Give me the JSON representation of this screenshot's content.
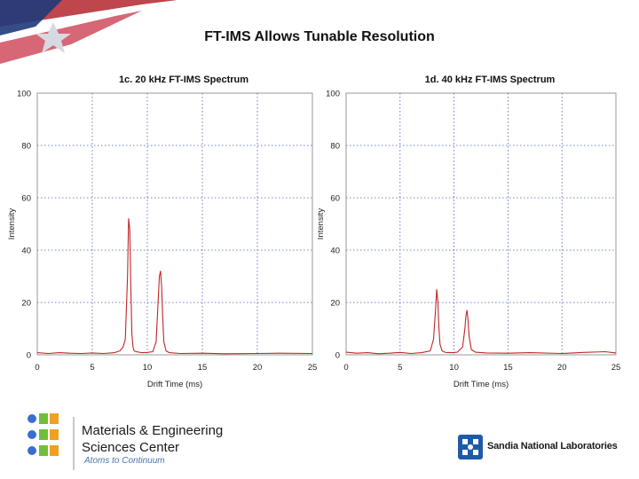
{
  "slide": {
    "title": "FT-IMS Allows Tunable Resolution"
  },
  "footer": {
    "org_line1": "Materials & Engineering",
    "org_line2": "Sciences Center",
    "tagline": "Atoms to Continuum",
    "lab_name": "Sandia National Laboratories",
    "accent_blue": "#3a6fd0",
    "accent_green": "#6fbf3a",
    "accent_orange": "#f0a020"
  },
  "chart_data": [
    {
      "type": "line",
      "title": "1c. 20 kHz FT-IMS Spectrum",
      "xlabel": "Drift Time (ms)",
      "ylabel": "Intensity",
      "xlim": [
        0,
        25
      ],
      "ylim": [
        0,
        100
      ],
      "xticks": [
        0,
        5,
        10,
        15,
        20,
        25
      ],
      "yticks": [
        0,
        20,
        40,
        60,
        80,
        100
      ],
      "grid": true,
      "line_color": "#c0262a",
      "x": [
        0,
        1,
        2,
        3,
        4,
        5,
        6,
        7,
        7.5,
        7.8,
        8.0,
        8.2,
        8.3,
        8.4,
        8.5,
        8.6,
        8.7,
        8.8,
        9.0,
        9.5,
        10.0,
        10.5,
        10.8,
        11.0,
        11.1,
        11.2,
        11.3,
        11.4,
        11.5,
        11.7,
        12.0,
        13,
        15,
        17,
        20,
        22,
        25
      ],
      "y": [
        0.8,
        0.5,
        0.8,
        0.6,
        0.5,
        0.7,
        0.5,
        0.8,
        1.5,
        3,
        6,
        30,
        52,
        48,
        26,
        8,
        3,
        1.5,
        1.2,
        0.8,
        0.9,
        1.2,
        5,
        22,
        30,
        32,
        26,
        14,
        5,
        1.5,
        0.8,
        0.5,
        0.6,
        0.4,
        0.5,
        0.6,
        0.5
      ]
    },
    {
      "type": "line",
      "title": "1d. 40 kHz FT-IMS Spectrum",
      "xlabel": "Drift Time (ms)",
      "ylabel": "Intensity",
      "xlim": [
        0,
        25
      ],
      "ylim": [
        0,
        100
      ],
      "xticks": [
        0,
        5,
        10,
        15,
        20,
        25
      ],
      "yticks": [
        0,
        20,
        40,
        60,
        80,
        100
      ],
      "grid": true,
      "line_color": "#c0262a",
      "x": [
        0,
        1,
        2,
        3,
        4,
        5,
        6,
        7,
        7.8,
        8.1,
        8.3,
        8.4,
        8.5,
        8.6,
        8.7,
        8.9,
        9.2,
        9.8,
        10.3,
        10.8,
        11.0,
        11.1,
        11.2,
        11.3,
        11.4,
        11.6,
        12.0,
        13,
        15,
        17,
        20,
        22,
        24,
        25
      ],
      "y": [
        1.0,
        0.6,
        0.8,
        0.4,
        0.6,
        0.9,
        0.5,
        0.8,
        1.5,
        6,
        18,
        25,
        20,
        10,
        4,
        1.5,
        0.9,
        0.8,
        1.0,
        3,
        10,
        15,
        17,
        13,
        7,
        2,
        1.0,
        0.7,
        0.6,
        0.8,
        0.5,
        0.9,
        1.2,
        0.7
      ]
    }
  ]
}
